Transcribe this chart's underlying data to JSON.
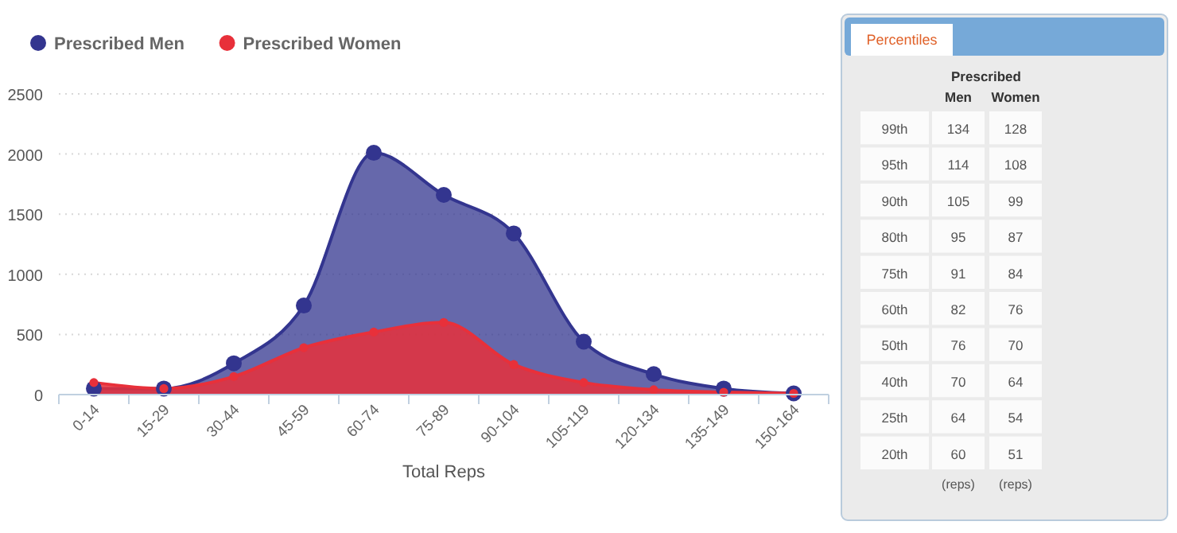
{
  "chart_data": [
    {
      "type": "area",
      "xlabel": "Total Reps",
      "categories": [
        "0-14",
        "15-29",
        "30-44",
        "45-59",
        "60-74",
        "75-89",
        "90-104",
        "105-119",
        "120-134",
        "135-149",
        "150-164"
      ],
      "series": [
        {
          "name": "Prescribed Men",
          "color": "#33358f",
          "values": [
            50,
            50,
            260,
            740,
            2010,
            1660,
            1340,
            440,
            170,
            50,
            10
          ]
        },
        {
          "name": "Prescribed Women",
          "color": "#e8303a",
          "values": [
            100,
            50,
            150,
            390,
            520,
            600,
            250,
            100,
            40,
            20,
            10
          ]
        }
      ],
      "ylim": [
        0,
        2500
      ],
      "yticks": [
        0,
        500,
        1000,
        1500,
        2000,
        2500
      ],
      "grid": "y",
      "legend": "top left",
      "marker": "circle"
    },
    {
      "type": "other",
      "title": "Percentiles",
      "subtitle": "Prescribed",
      "categories": [
        "99th",
        "95th",
        "90th",
        "80th",
        "75th",
        "60th",
        "50th",
        "40th",
        "25th",
        "20th"
      ],
      "series": [
        {
          "name": "Men",
          "values": [
            134,
            114,
            105,
            95,
            91,
            82,
            76,
            70,
            64,
            60
          ]
        },
        {
          "name": "Women",
          "values": [
            128,
            108,
            99,
            87,
            84,
            76,
            70,
            64,
            54,
            51
          ]
        }
      ],
      "data_labels": true,
      "annotations": [
        "(reps)",
        "(reps)"
      ]
    }
  ]
}
